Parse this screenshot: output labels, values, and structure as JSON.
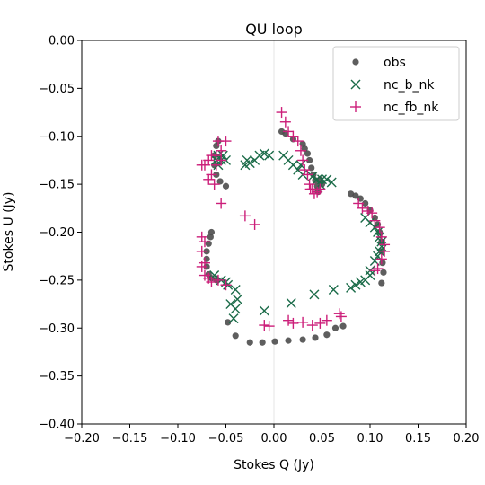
{
  "chart_data": {
    "type": "scatter",
    "title": "QU loop",
    "xlabel": "Stokes Q (Jy)",
    "ylabel": "Stokes U (Jy)",
    "xlim": [
      -0.2,
      0.2
    ],
    "ylim": [
      -0.4,
      0.0
    ],
    "xticks": [
      -0.2,
      -0.15,
      -0.1,
      -0.05,
      0.0,
      0.05,
      0.1,
      0.15,
      0.2
    ],
    "xtick_labels": [
      "−0.20",
      "−0.15",
      "−0.10",
      "−0.05",
      "0.00",
      "0.05",
      "0.10",
      "0.15",
      "0.20"
    ],
    "yticks": [
      0.0,
      -0.05,
      -0.1,
      -0.15,
      -0.2,
      -0.25,
      -0.3,
      -0.35,
      -0.4
    ],
    "ytick_labels": [
      "0.00",
      "−0.05",
      "−0.10",
      "−0.15",
      "−0.20",
      "−0.25",
      "−0.30",
      "−0.35",
      "−0.40"
    ],
    "zero_line": "x=0",
    "legend_position": "upper right",
    "series": [
      {
        "name": "obs",
        "marker": "circle",
        "color": "#4d4d4d",
        "points": [
          [
            0.008,
            -0.095
          ],
          [
            0.012,
            -0.097
          ],
          [
            0.02,
            -0.103
          ],
          [
            0.03,
            -0.108
          ],
          [
            0.032,
            -0.113
          ],
          [
            0.035,
            -0.118
          ],
          [
            0.037,
            -0.125
          ],
          [
            0.039,
            -0.133
          ],
          [
            0.041,
            -0.14
          ],
          [
            0.043,
            -0.146
          ],
          [
            0.045,
            -0.152
          ],
          [
            0.046,
            -0.158
          ],
          [
            0.048,
            -0.145
          ],
          [
            0.05,
            -0.15
          ],
          [
            0.08,
            -0.16
          ],
          [
            0.085,
            -0.162
          ],
          [
            0.09,
            -0.165
          ],
          [
            0.095,
            -0.17
          ],
          [
            0.1,
            -0.177
          ],
          [
            0.105,
            -0.185
          ],
          [
            0.108,
            -0.192
          ],
          [
            0.11,
            -0.2
          ],
          [
            0.112,
            -0.21
          ],
          [
            0.112,
            -0.22
          ],
          [
            0.113,
            -0.232
          ],
          [
            0.114,
            -0.242
          ],
          [
            0.112,
            -0.253
          ],
          [
            0.072,
            -0.298
          ],
          [
            0.064,
            -0.3
          ],
          [
            0.055,
            -0.307
          ],
          [
            0.043,
            -0.31
          ],
          [
            0.03,
            -0.312
          ],
          [
            0.015,
            -0.313
          ],
          [
            0.001,
            -0.314
          ],
          [
            -0.012,
            -0.315
          ],
          [
            -0.025,
            -0.315
          ],
          [
            -0.04,
            -0.308
          ],
          [
            -0.048,
            -0.294
          ],
          [
            -0.065,
            -0.2
          ],
          [
            -0.066,
            -0.205
          ],
          [
            -0.068,
            -0.212
          ],
          [
            -0.07,
            -0.22
          ],
          [
            -0.07,
            -0.228
          ],
          [
            -0.07,
            -0.236
          ],
          [
            -0.068,
            -0.244
          ],
          [
            -0.065,
            -0.248
          ],
          [
            -0.06,
            -0.25
          ],
          [
            -0.058,
            -0.105
          ],
          [
            -0.06,
            -0.11
          ],
          [
            -0.062,
            -0.12
          ],
          [
            -0.062,
            -0.13
          ],
          [
            -0.06,
            -0.14
          ],
          [
            -0.056,
            -0.147
          ],
          [
            -0.05,
            -0.152
          ]
        ]
      },
      {
        "name": "nc_b_nk",
        "marker": "x",
        "color": "#1a6b48",
        "points": [
          [
            -0.06,
            -0.125
          ],
          [
            -0.058,
            -0.12
          ],
          [
            -0.055,
            -0.125
          ],
          [
            -0.053,
            -0.12
          ],
          [
            -0.05,
            -0.125
          ],
          [
            -0.058,
            -0.13
          ],
          [
            -0.03,
            -0.13
          ],
          [
            -0.025,
            -0.128
          ],
          [
            -0.02,
            -0.125
          ],
          [
            -0.015,
            -0.12
          ],
          [
            -0.01,
            -0.118
          ],
          [
            -0.005,
            -0.12
          ],
          [
            -0.028,
            -0.125
          ],
          [
            0.01,
            -0.12
          ],
          [
            0.015,
            -0.125
          ],
          [
            0.02,
            -0.13
          ],
          [
            0.025,
            -0.135
          ],
          [
            0.028,
            -0.13
          ],
          [
            0.03,
            -0.14
          ],
          [
            0.04,
            -0.142
          ],
          [
            0.045,
            -0.145
          ],
          [
            0.05,
            -0.145
          ],
          [
            0.055,
            -0.145
          ],
          [
            0.06,
            -0.148
          ],
          [
            0.048,
            -0.15
          ],
          [
            0.095,
            -0.185
          ],
          [
            0.1,
            -0.19
          ],
          [
            0.105,
            -0.195
          ],
          [
            0.108,
            -0.2
          ],
          [
            0.11,
            -0.205
          ],
          [
            0.112,
            -0.21
          ],
          [
            0.112,
            -0.215
          ],
          [
            0.11,
            -0.22
          ],
          [
            0.108,
            -0.225
          ],
          [
            0.105,
            -0.23
          ],
          [
            0.1,
            -0.24
          ],
          [
            0.1,
            -0.245
          ],
          [
            0.095,
            -0.25
          ],
          [
            0.09,
            -0.252
          ],
          [
            0.085,
            -0.255
          ],
          [
            0.08,
            -0.258
          ],
          [
            0.062,
            -0.26
          ],
          [
            0.042,
            -0.265
          ],
          [
            0.018,
            -0.274
          ],
          [
            -0.01,
            -0.282
          ],
          [
            -0.04,
            -0.28
          ],
          [
            -0.042,
            -0.29
          ],
          [
            -0.045,
            -0.275
          ],
          [
            -0.038,
            -0.27
          ],
          [
            -0.04,
            -0.26
          ],
          [
            -0.048,
            -0.255
          ],
          [
            -0.05,
            -0.252
          ],
          [
            -0.055,
            -0.25
          ],
          [
            -0.062,
            -0.245
          ]
        ]
      },
      {
        "name": "nc_fb_nk",
        "marker": "plus",
        "color": "#cc1f7a",
        "points": [
          [
            0.008,
            -0.075
          ],
          [
            0.012,
            -0.085
          ],
          [
            0.015,
            -0.095
          ],
          [
            0.02,
            -0.1
          ],
          [
            0.025,
            -0.105
          ],
          [
            0.028,
            -0.115
          ],
          [
            0.03,
            -0.125
          ],
          [
            0.032,
            -0.135
          ],
          [
            0.035,
            -0.14
          ],
          [
            0.037,
            -0.15
          ],
          [
            0.04,
            -0.155
          ],
          [
            0.042,
            -0.16
          ],
          [
            0.045,
            -0.158
          ],
          [
            0.048,
            -0.155
          ],
          [
            0.038,
            -0.155
          ],
          [
            0.088,
            -0.17
          ],
          [
            0.092,
            -0.175
          ],
          [
            0.098,
            -0.178
          ],
          [
            0.102,
            -0.18
          ],
          [
            0.105,
            -0.188
          ],
          [
            0.11,
            -0.195
          ],
          [
            0.112,
            -0.205
          ],
          [
            0.115,
            -0.213
          ],
          [
            0.115,
            -0.22
          ],
          [
            0.112,
            -0.228
          ],
          [
            0.108,
            -0.238
          ],
          [
            0.105,
            -0.24
          ],
          [
            0.068,
            -0.285
          ],
          [
            0.07,
            -0.288
          ],
          [
            0.055,
            -0.292
          ],
          [
            0.048,
            -0.295
          ],
          [
            0.04,
            -0.297
          ],
          [
            0.03,
            -0.294
          ],
          [
            0.02,
            -0.295
          ],
          [
            0.015,
            -0.292
          ],
          [
            -0.005,
            -0.298
          ],
          [
            -0.01,
            -0.297
          ],
          [
            -0.03,
            -0.183
          ],
          [
            -0.02,
            -0.192
          ],
          [
            -0.055,
            -0.17
          ],
          [
            -0.075,
            -0.205
          ],
          [
            -0.072,
            -0.21
          ],
          [
            -0.075,
            -0.22
          ],
          [
            -0.072,
            -0.232
          ],
          [
            -0.075,
            -0.236
          ],
          [
            -0.072,
            -0.245
          ],
          [
            -0.068,
            -0.248
          ],
          [
            -0.065,
            -0.252
          ],
          [
            -0.058,
            -0.25
          ],
          [
            -0.05,
            -0.255
          ],
          [
            -0.072,
            -0.13
          ],
          [
            -0.068,
            -0.125
          ],
          [
            -0.065,
            -0.12
          ],
          [
            -0.06,
            -0.12
          ],
          [
            -0.055,
            -0.125
          ],
          [
            -0.05,
            -0.105
          ],
          [
            -0.055,
            -0.115
          ],
          [
            -0.058,
            -0.105
          ],
          [
            -0.06,
            -0.13
          ],
          [
            -0.065,
            -0.14
          ],
          [
            -0.062,
            -0.15
          ],
          [
            -0.068,
            -0.145
          ],
          [
            -0.075,
            -0.13
          ]
        ]
      }
    ]
  }
}
